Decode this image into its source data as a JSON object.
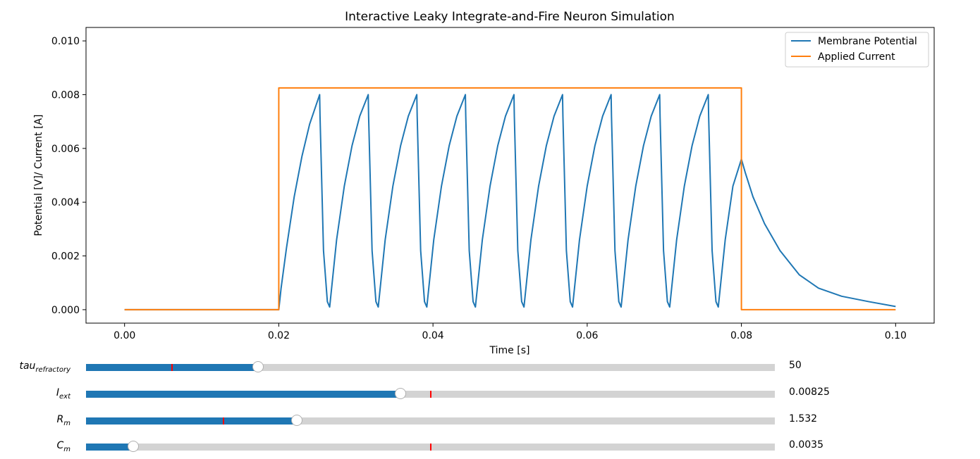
{
  "chart_data": {
    "type": "line",
    "title": "Interactive Leaky Integrate-and-Fire Neuron Simulation",
    "xlabel": "Time [s]",
    "ylabel": "Potential [V]/ Current [A]",
    "xlim": [
      -0.005,
      0.105
    ],
    "ylim": [
      -0.0005,
      0.0105
    ],
    "xticks": [
      0.0,
      0.02,
      0.04,
      0.06,
      0.08,
      0.1
    ],
    "xtick_labels": [
      "0.00",
      "0.02",
      "0.04",
      "0.06",
      "0.08",
      "0.10"
    ],
    "yticks": [
      0.0,
      0.002,
      0.004,
      0.006,
      0.008,
      0.01
    ],
    "ytick_labels": [
      "0.000",
      "0.002",
      "0.004",
      "0.006",
      "0.008",
      "0.010"
    ],
    "grid": false,
    "legend_position": "top-right",
    "series": [
      {
        "name": "Membrane Potential",
        "color": "#1f77b4",
        "x": [
          0,
          0.02,
          0.0203,
          0.021,
          0.022,
          0.023,
          0.024,
          0.0253,
          0.02535,
          0.0258,
          0.0263,
          0.0266,
          0.0275,
          0.0285,
          0.0295,
          0.0305,
          0.0316,
          0.03165,
          0.0321,
          0.0326,
          0.0329,
          0.0338,
          0.0348,
          0.0358,
          0.0368,
          0.0379,
          0.03795,
          0.0384,
          0.0389,
          0.0392,
          0.0401,
          0.0411,
          0.0421,
          0.0431,
          0.0442,
          0.04425,
          0.0447,
          0.0452,
          0.0455,
          0.0464,
          0.0474,
          0.0484,
          0.0494,
          0.0505,
          0.05055,
          0.051,
          0.0515,
          0.0518,
          0.0527,
          0.0537,
          0.0547,
          0.0557,
          0.0568,
          0.05685,
          0.0573,
          0.0578,
          0.0581,
          0.059,
          0.06,
          0.061,
          0.062,
          0.0631,
          0.06315,
          0.0636,
          0.0641,
          0.0644,
          0.0653,
          0.0663,
          0.0673,
          0.0683,
          0.0694,
          0.06945,
          0.0699,
          0.0704,
          0.0707,
          0.0716,
          0.0726,
          0.0736,
          0.0746,
          0.0757,
          0.07575,
          0.0762,
          0.0767,
          0.077,
          0.0779,
          0.0789,
          0.08,
          0.0805,
          0.0815,
          0.083,
          0.085,
          0.0875,
          0.09,
          0.093,
          0.0965,
          0.1
        ],
        "y": [
          0,
          0,
          0.0008,
          0.0023,
          0.0042,
          0.0057,
          0.0069,
          0.008,
          0.0072,
          0.0022,
          0.0003,
          0.0001,
          0.0026,
          0.0046,
          0.0061,
          0.0072,
          0.008,
          0.0072,
          0.0022,
          0.0003,
          0.0001,
          0.0026,
          0.0046,
          0.0061,
          0.0072,
          0.008,
          0.0072,
          0.0022,
          0.0003,
          0.0001,
          0.0026,
          0.0046,
          0.0061,
          0.0072,
          0.008,
          0.0072,
          0.0022,
          0.0003,
          0.0001,
          0.0026,
          0.0046,
          0.0061,
          0.0072,
          0.008,
          0.0072,
          0.0022,
          0.0003,
          0.0001,
          0.0026,
          0.0046,
          0.0061,
          0.0072,
          0.008,
          0.0072,
          0.0022,
          0.0003,
          0.0001,
          0.0026,
          0.0046,
          0.0061,
          0.0072,
          0.008,
          0.0072,
          0.0022,
          0.0003,
          0.0001,
          0.0026,
          0.0046,
          0.0061,
          0.0072,
          0.008,
          0.0072,
          0.0022,
          0.0003,
          0.0001,
          0.0026,
          0.0046,
          0.0061,
          0.0072,
          0.008,
          0.0072,
          0.0022,
          0.0003,
          0.0001,
          0.0026,
          0.0046,
          0.0056,
          0.0051,
          0.0042,
          0.0032,
          0.0022,
          0.0013,
          0.0008,
          0.0005,
          0.0003,
          0.00012
        ]
      },
      {
        "name": "Applied Current",
        "color": "#ff7f0e",
        "x": [
          0,
          0.02,
          0.02,
          0.08,
          0.08,
          0.1
        ],
        "y": [
          0,
          0,
          0.00825,
          0.00825,
          0,
          0
        ]
      }
    ]
  },
  "sliders": [
    {
      "id": "tau",
      "label_main": "tau",
      "label_sub": "refractory",
      "value": "50",
      "fraction": 0.25,
      "initial_fraction": 0.125
    },
    {
      "id": "iext",
      "label_main": "I",
      "label_sub": "ext",
      "value": "0.00825",
      "fraction": 0.456,
      "initial_fraction": 0.5
    },
    {
      "id": "rm",
      "label_main": "R",
      "label_sub": "m",
      "value": "1.532",
      "fraction": 0.306,
      "initial_fraction": 0.2
    },
    {
      "id": "cm",
      "label_main": "C",
      "label_sub": "m",
      "value": "0.0035",
      "fraction": 0.069,
      "initial_fraction": 0.5
    }
  ]
}
